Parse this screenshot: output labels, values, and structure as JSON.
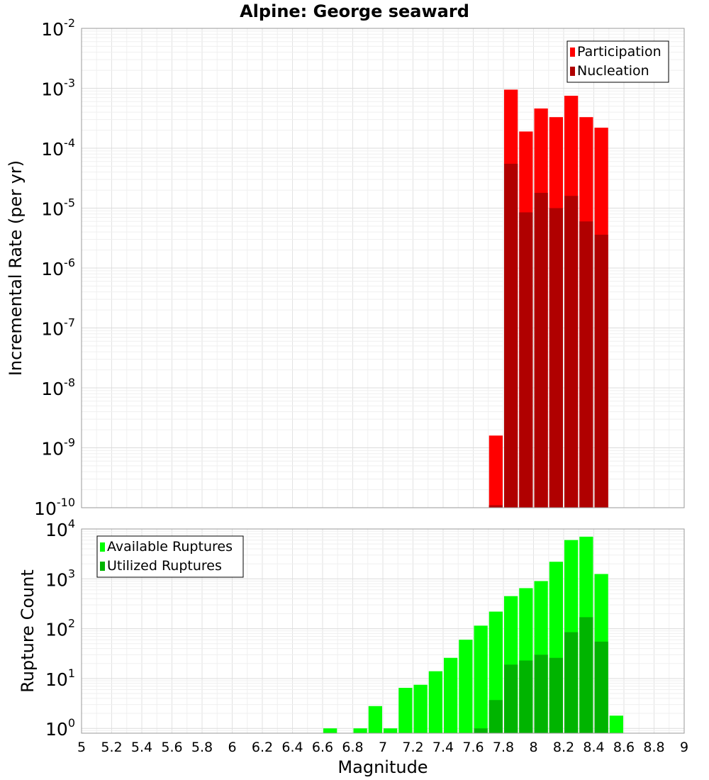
{
  "chart_data": {
    "title": "Alpine: George seaward",
    "xlabel": "Magnitude",
    "xlim": [
      5,
      9
    ],
    "xtick_labels": [
      "5",
      "5.2",
      "5.4",
      "5.6",
      "5.8",
      "6",
      "6.2",
      "6.4",
      "6.6",
      "6.8",
      "7",
      "7.2",
      "7.4",
      "7.6",
      "7.8",
      "8",
      "8.2",
      "8.4",
      "8.6",
      "8.8",
      "9"
    ],
    "bin_width": 0.1,
    "grid": true,
    "panels": [
      {
        "type": "bar",
        "y_scale": "log",
        "ylabel": "Incremental Rate (per yr)",
        "ylim": [
          1e-10,
          0.01
        ],
        "y_tick_exponents": [
          "-10",
          "-9",
          "-8",
          "-7",
          "-6",
          "-5",
          "-4",
          "-3",
          "-2"
        ],
        "legend_position": "top-right",
        "series": [
          {
            "name": "Participation",
            "color": "#ff0000",
            "x": [
              7.75,
              7.85,
              7.95,
              8.05,
              8.15,
              8.25,
              8.35,
              8.45
            ],
            "values": [
              1.6e-09,
              0.00095,
              0.00019,
              0.00046,
              0.00033,
              0.00075,
              0.00033,
              0.00022
            ]
          },
          {
            "name": "Nucleation",
            "color": "#b00000",
            "x": [
              7.75,
              7.85,
              7.95,
              8.05,
              8.15,
              8.25,
              8.35,
              8.45
            ],
            "values": [
              1.1e-10,
              5.5e-05,
              8.5e-06,
              1.8e-05,
              1e-05,
              1.6e-05,
              6e-06,
              3.6e-06
            ]
          }
        ]
      },
      {
        "type": "bar",
        "y_scale": "log",
        "ylabel": "Rupture Count",
        "ylim": [
          0.8,
          10000
        ],
        "y_tick_exponents": [
          "0",
          "1",
          "2",
          "3",
          "4"
        ],
        "legend_position": "top-left",
        "series": [
          {
            "name": "Available Ruptures",
            "color": "#00ff00",
            "x": [
              6.65,
              6.85,
              6.95,
              7.05,
              7.15,
              7.25,
              7.35,
              7.45,
              7.55,
              7.65,
              7.75,
              7.85,
              7.95,
              8.05,
              8.15,
              8.25,
              8.35,
              8.45,
              8.55
            ],
            "values": [
              1,
              1,
              2.8,
              1,
              6.5,
              7.5,
              14,
              26,
              60,
              115,
              220,
              450,
              650,
              900,
              2200,
              6000,
              7000,
              1250,
              1.8
            ]
          },
          {
            "name": "Utilized Ruptures",
            "color": "#00b400",
            "x": [
              7.65,
              7.75,
              7.85,
              7.95,
              8.05,
              8.15,
              8.25,
              8.35,
              8.45
            ],
            "values": [
              1,
              3.7,
              19,
              23,
              30,
              26,
              85,
              170,
              55
            ]
          }
        ]
      }
    ]
  }
}
